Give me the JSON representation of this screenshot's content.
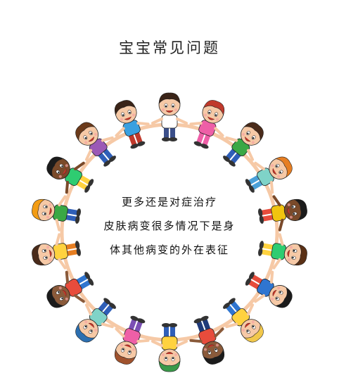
{
  "title": "宝宝常见问题",
  "body_lines": [
    "更多还是对症治疗",
    "皮肤病变很多情况下是身",
    "体其他病变的外在表征"
  ],
  "illustration": {
    "subject": "cartoon-children-holding-hands-circle",
    "kids": [
      {
        "hair": "#3a2418",
        "skin": "#f6c9a6",
        "shirt": "#ffffff",
        "pants": "#3b4f8a"
      },
      {
        "hair": "#c0392b",
        "skin": "#f6c9a6",
        "shirt": "#ee5fa7",
        "pants": "#ee5fa7"
      },
      {
        "hair": "#4a2b1a",
        "skin": "#f6c9a6",
        "shirt": "#3aa845",
        "pants": "#2f5fb8"
      },
      {
        "hair": "#e67e22",
        "skin": "#f6c9a6",
        "shirt": "#7fd3c8",
        "pants": "#4aa0d8"
      },
      {
        "hair": "#1b1b1b",
        "skin": "#7a4a2a",
        "shirt": "#f1c40f",
        "pants": "#e74c3c"
      },
      {
        "hair": "#5a3015",
        "skin": "#f6c9a6",
        "shirt": "#2ecc71",
        "pants": "#ffd23f"
      },
      {
        "hair": "#1b1b1b",
        "skin": "#f6c9a6",
        "shirt": "#2f75d0",
        "pants": "#e74c3c"
      },
      {
        "hair": "#f2c84b",
        "skin": "#f6c9a6",
        "shirt": "#ffd23f",
        "pants": "#2f75d0"
      },
      {
        "hair": "#1b1b1b",
        "skin": "#8a5a3a",
        "shirt": "#e74c3c",
        "pants": "#1f3a7a"
      },
      {
        "hair": "#3a9a4a",
        "skin": "#f6c9a6",
        "shirt": "#ffd23f",
        "pants": "#2f5fb8"
      },
      {
        "hair": "#a0522d",
        "skin": "#f6c9a6",
        "shirt": "#ee5fa7",
        "pants": "#7b4fb5"
      },
      {
        "hair": "#2c6fb0",
        "skin": "#f6c9a6",
        "shirt": "#7fd3c8",
        "pants": "#2f5fb8"
      },
      {
        "hair": "#1b1b1b",
        "skin": "#8a5a3a",
        "shirt": "#e74c3c",
        "pants": "#2f75d0"
      },
      {
        "hair": "#4a2b1a",
        "skin": "#f6c9a6",
        "shirt": "#ffd23f",
        "pants": "#e67e22"
      },
      {
        "hair": "#f39c12",
        "skin": "#f6c9a6",
        "shirt": "#3aa845",
        "pants": "#2f5fb8"
      },
      {
        "hair": "#1b1b1b",
        "skin": "#7a4a2a",
        "shirt": "#2ecc71",
        "pants": "#ffd23f"
      },
      {
        "hair": "#6b3a1a",
        "skin": "#f6c9a6",
        "shirt": "#9b59b6",
        "pants": "#2f5fb8"
      },
      {
        "hair": "#3a2418",
        "skin": "#f6c9a6",
        "shirt": "#3aa0e0",
        "pants": "#c0392b"
      }
    ]
  }
}
